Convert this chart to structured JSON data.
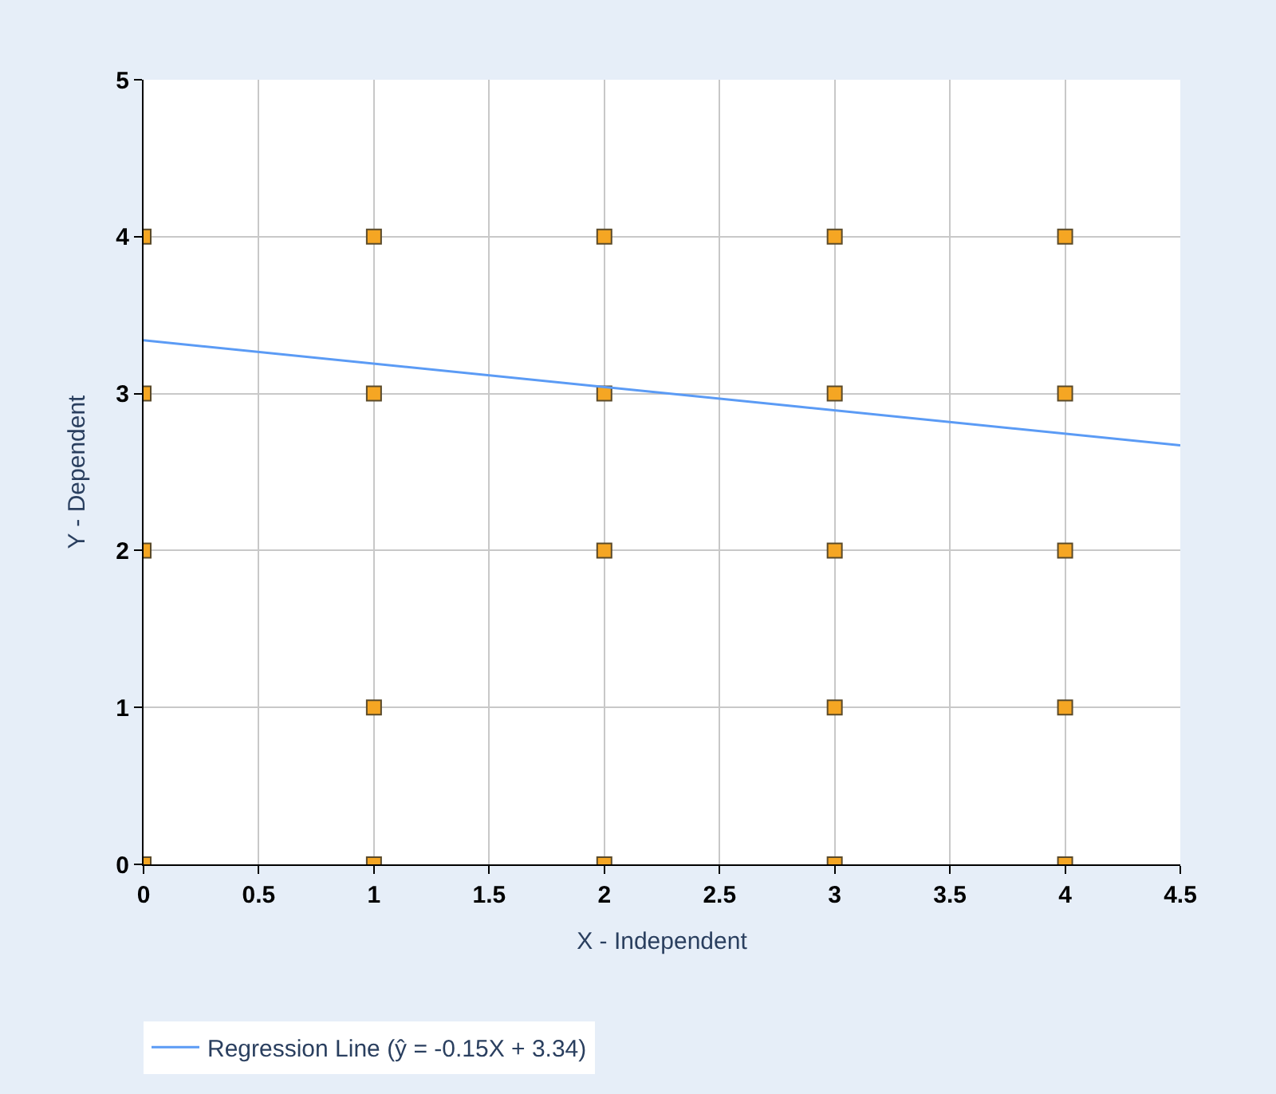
{
  "chart_data": {
    "type": "scatter",
    "xlabel": "X - Independent",
    "ylabel": "Y - Dependent",
    "series": [
      {
        "color": "#f5a623",
        "marker": "square",
        "x": [
          0,
          0,
          0,
          0,
          1,
          1,
          1,
          1,
          2,
          2,
          2,
          2,
          3,
          3,
          3,
          3,
          3,
          4,
          4,
          4,
          4,
          4
        ],
        "values": [
          4,
          3,
          2,
          0,
          4,
          3,
          1,
          0,
          4,
          3,
          2,
          0,
          4,
          3,
          2,
          1,
          0,
          4,
          3,
          2,
          1,
          0
        ]
      },
      {
        "type": "line",
        "name": "Regression Line (ŷ = -0.15X + 3.34)",
        "color": "#5b9bf5",
        "marker": "none",
        "line_style": "solid",
        "x": [
          0,
          4.5
        ],
        "values": [
          3.34,
          2.67
        ]
      }
    ],
    "xlim": [
      0,
      4.5
    ],
    "xticks": [
      0,
      0.5,
      1,
      1.5,
      2,
      2.5,
      3,
      3.5,
      4,
      4.5
    ],
    "ylim": [
      0,
      5
    ],
    "yticks": [
      0,
      1,
      2,
      3,
      4,
      5
    ],
    "grid": true,
    "legend": "bottom left"
  }
}
